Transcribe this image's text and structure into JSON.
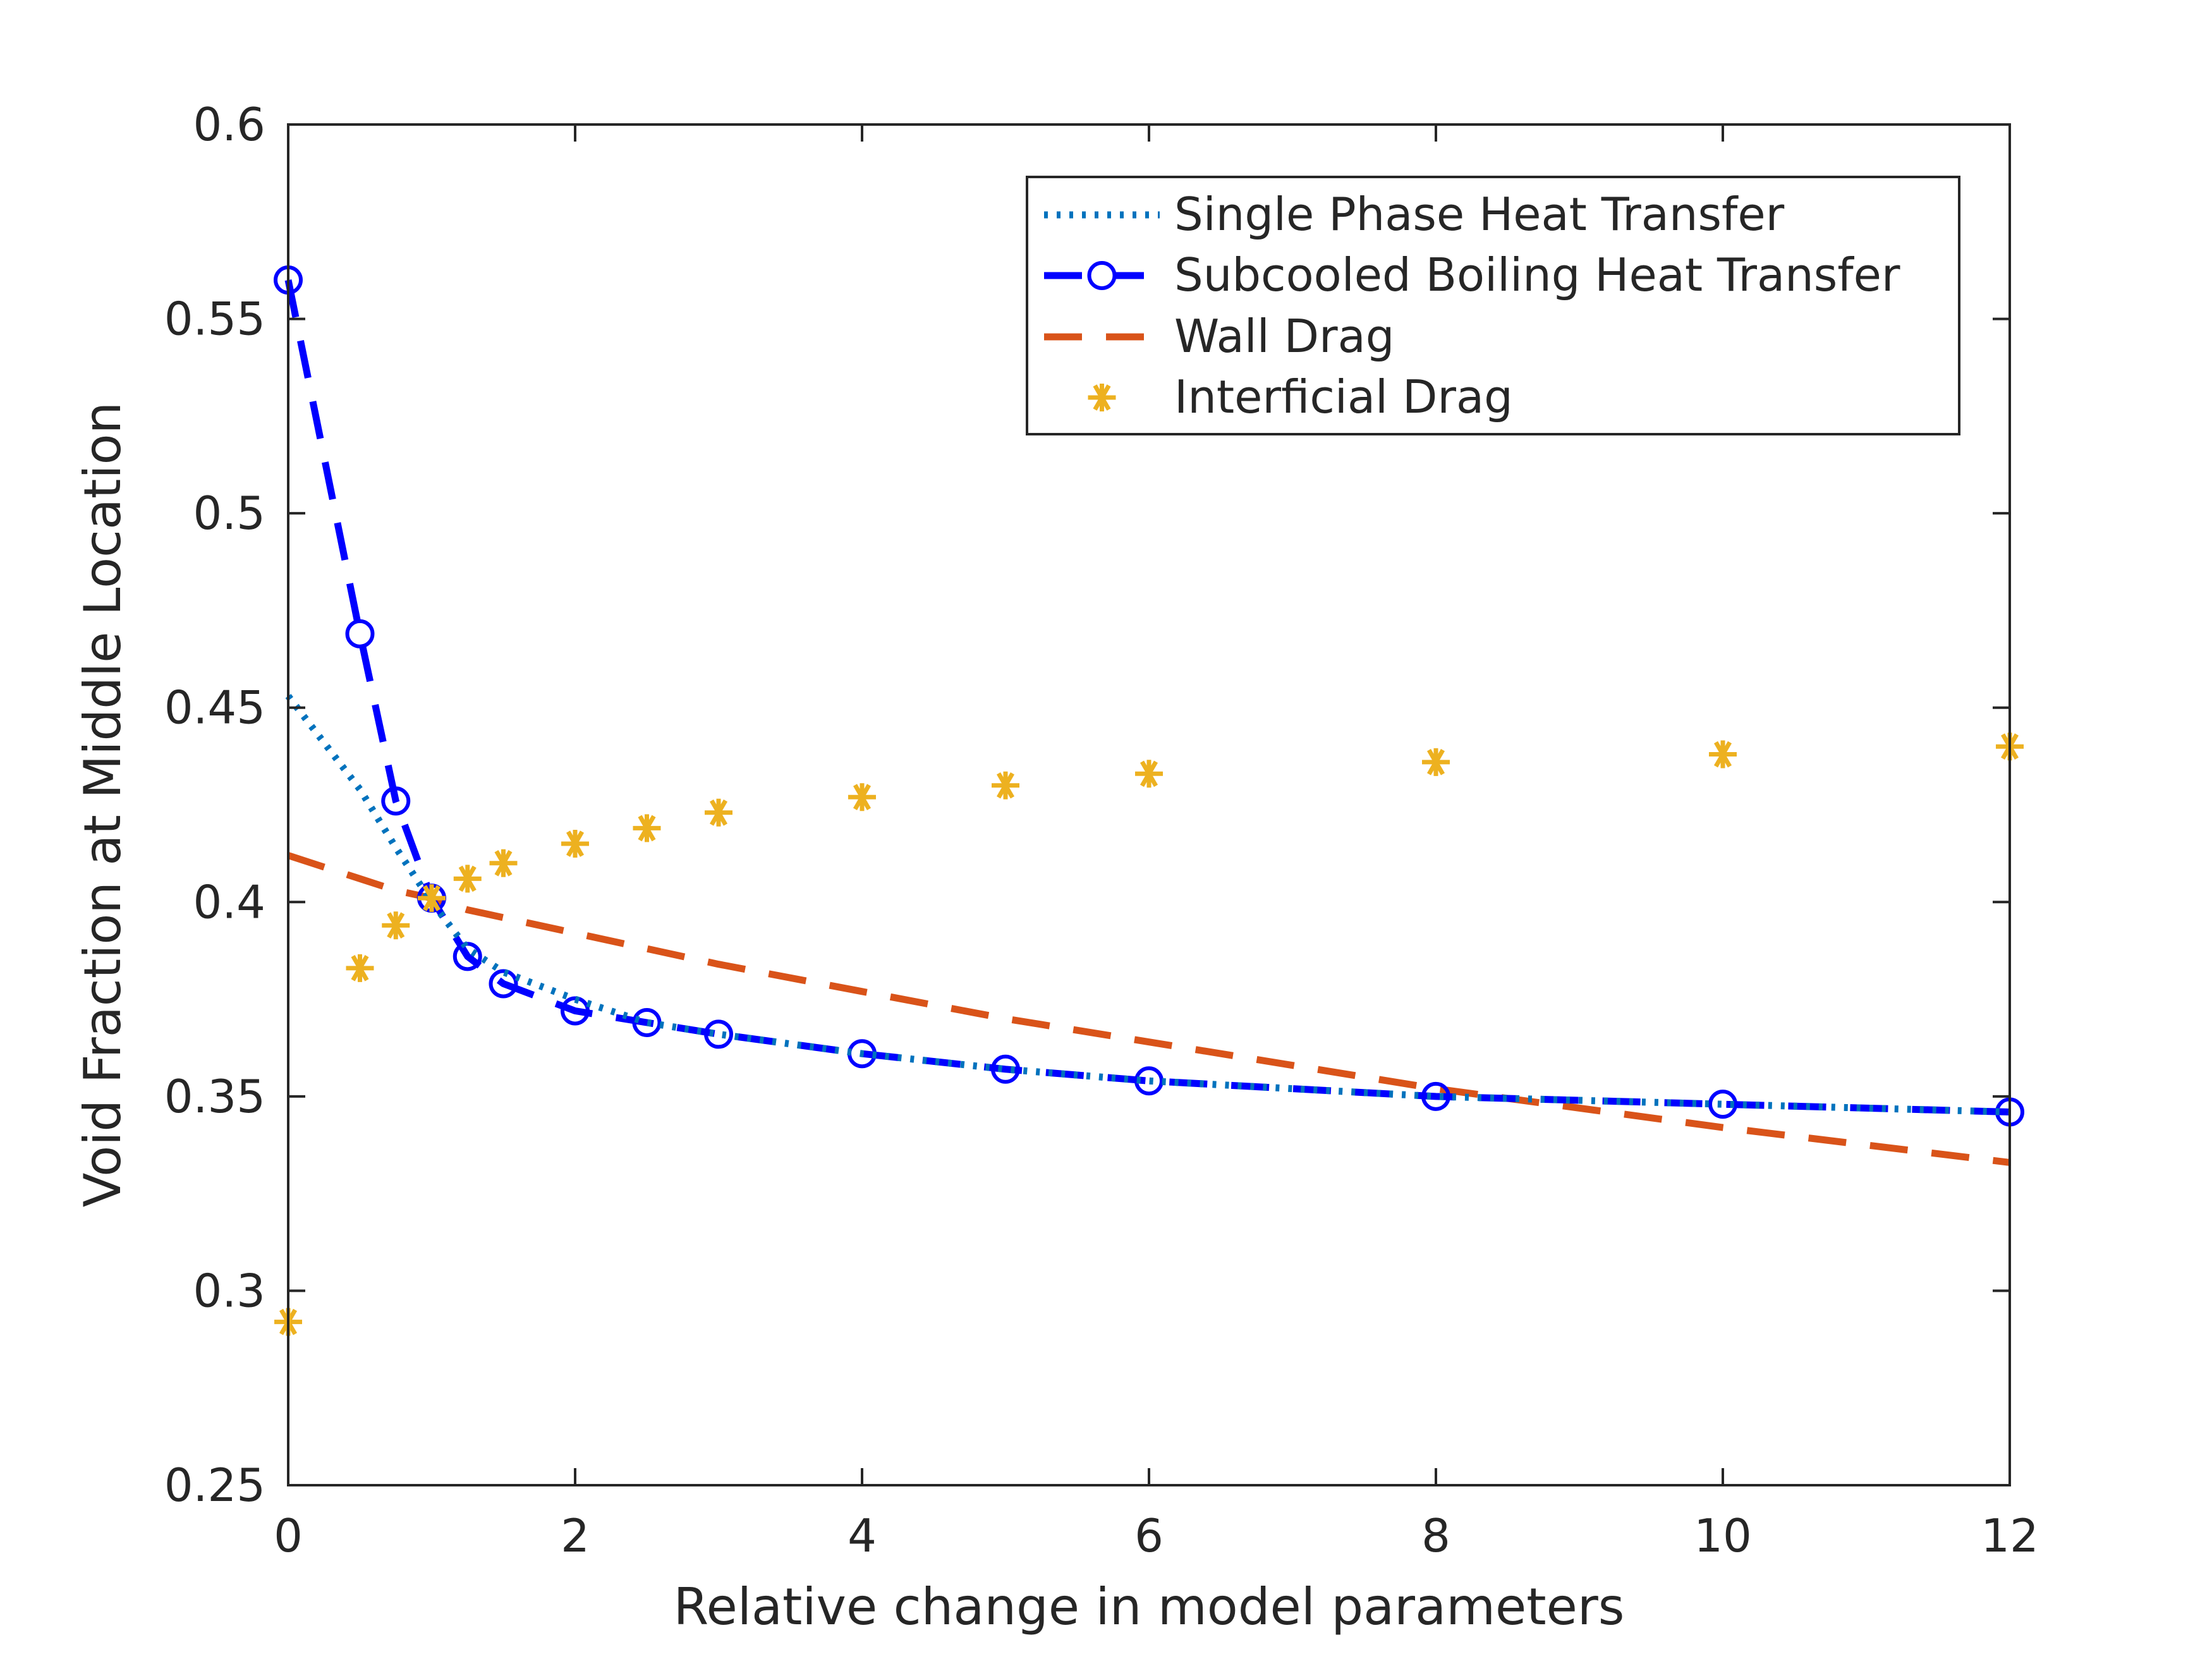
{
  "chart_data": {
    "type": "line",
    "title": "",
    "xlabel": "Relative change in model parameters",
    "ylabel": "Void Fraction at Middle Location",
    "xlim": [
      0,
      12
    ],
    "ylim": [
      0.25,
      0.6
    ],
    "xticks": [
      0,
      2,
      4,
      6,
      8,
      10,
      12
    ],
    "xtick_labels": [
      "0",
      "2",
      "4",
      "6",
      "8",
      "10",
      "12"
    ],
    "yticks": [
      0.25,
      0.3,
      0.35,
      0.4,
      0.45,
      0.5,
      0.55,
      0.6
    ],
    "ytick_labels": [
      "0.25",
      "0.3",
      "0.35",
      "0.4",
      "0.45",
      "0.5",
      "0.55",
      "0.6"
    ],
    "grid": false,
    "legend_position": "top-right",
    "x": [
      0,
      0.5,
      0.75,
      1,
      1.25,
      1.5,
      2,
      2.5,
      3,
      4,
      5,
      6,
      8,
      10,
      12
    ],
    "series": [
      {
        "name": "Single Phase Heat Transfer",
        "color": "#0072BD",
        "style": "dotted",
        "marker": "none",
        "values": [
          0.453,
          0.429,
          0.414,
          0.4,
          0.388,
          0.382,
          0.375,
          0.369,
          0.366,
          0.361,
          0.357,
          0.354,
          0.35,
          0.348,
          0.346
        ]
      },
      {
        "name": "Subcooled Boiling Heat Transfer",
        "color": "#0000FF",
        "style": "dashed",
        "marker": "circle",
        "values": [
          0.56,
          0.469,
          0.426,
          0.401,
          0.386,
          0.379,
          0.372,
          0.369,
          0.366,
          0.361,
          0.357,
          0.354,
          0.35,
          0.348,
          0.346
        ]
      },
      {
        "name": "Wall Drag",
        "color": "#D95319",
        "style": "dashed",
        "marker": "none",
        "values": [
          0.412,
          0.406,
          0.403,
          0.401,
          0.398,
          0.396,
          0.392,
          0.388,
          0.384,
          0.377,
          0.37,
          0.364,
          0.352,
          0.342,
          0.333
        ]
      },
      {
        "name": "Interficial Drag",
        "color": "#EDB120",
        "style": "none",
        "marker": "asterisk",
        "values": [
          0.292,
          0.383,
          0.394,
          0.401,
          0.406,
          0.41,
          0.415,
          0.419,
          0.423,
          0.427,
          0.43,
          0.433,
          0.436,
          0.438,
          0.44
        ]
      }
    ]
  }
}
